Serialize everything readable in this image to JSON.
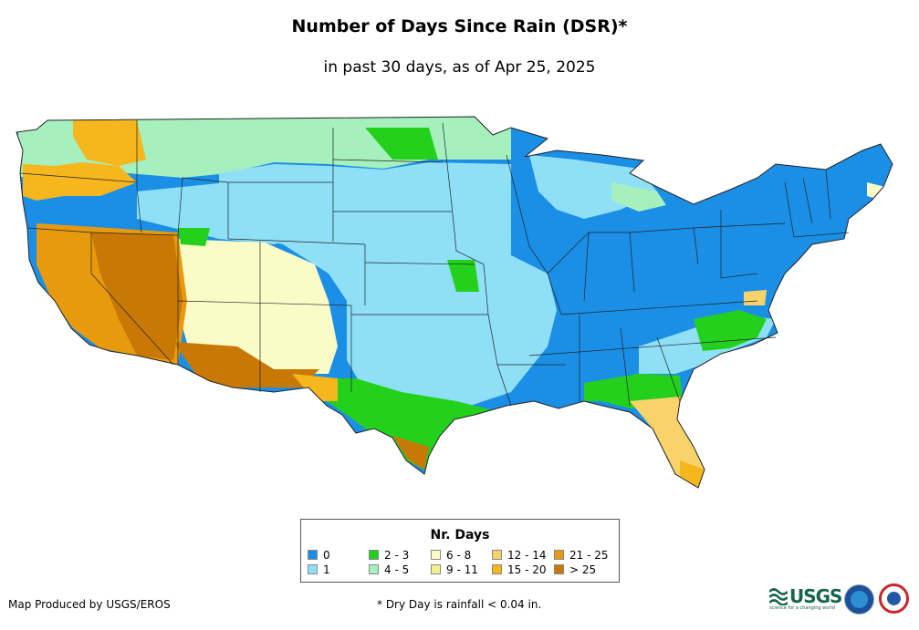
{
  "title": "Number of Days Since Rain (DSR)*",
  "subtitle": "in past 30 days, as of Apr 25, 2025",
  "legend": {
    "title": "Nr. Days",
    "items": [
      {
        "label": "0",
        "color": "#1b8fe6"
      },
      {
        "label": "1",
        "color": "#8fe0f7"
      },
      {
        "label": "2 - 3",
        "color": "#23d11d"
      },
      {
        "label": "4 - 5",
        "color": "#a6f0bd"
      },
      {
        "label": "6 - 8",
        "color": "#fbfbc8"
      },
      {
        "label": "9 - 11",
        "color": "#f2f28c"
      },
      {
        "label": "12 - 14",
        "color": "#f8d36a"
      },
      {
        "label": "15 - 20",
        "color": "#f5b61e"
      },
      {
        "label": "21 - 25",
        "color": "#e89a0e"
      },
      {
        "label": "> 25",
        "color": "#c87805"
      }
    ]
  },
  "footer": {
    "credit": "Map Produced by USGS/EROS",
    "note": "* Dry Day is rainfall < 0.04 in."
  },
  "logos": {
    "usgs_text": "USGS",
    "usgs_tagline": "science for a changing world",
    "noaa": "NOAA",
    "nws": "National Weather Service"
  }
}
